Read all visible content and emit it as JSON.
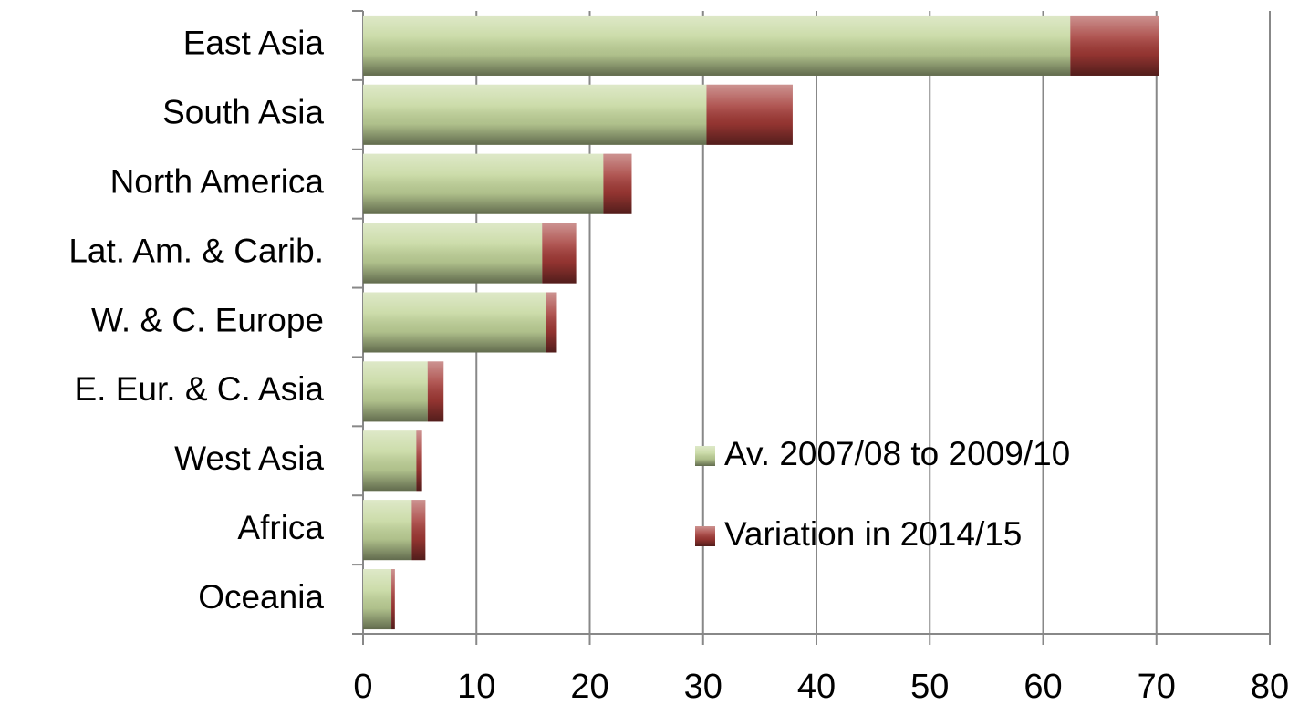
{
  "chart_data": {
    "type": "stacked_barh",
    "categories": [
      "East Asia",
      "South Asia",
      "North America",
      "Lat. Am. & Carib.",
      "W. & C. Europe",
      "E. Eur. & C. Asia",
      "West Asia",
      "Africa",
      "Oceania"
    ],
    "series": [
      {
        "name": "Av. 2007/08 to 2009/10",
        "color": "#c3d69b",
        "values": [
          62.4,
          30.3,
          21.2,
          15.8,
          16.1,
          5.7,
          4.7,
          4.3,
          2.5
        ]
      },
      {
        "name": "Variation in 2014/15",
        "color": "#a33a36",
        "values": [
          7.8,
          7.6,
          2.5,
          3.0,
          1.0,
          1.4,
          0.5,
          1.2,
          0.3
        ]
      }
    ],
    "xlim": [
      0,
      80
    ],
    "xticks": [
      0,
      10,
      20,
      30,
      40,
      50,
      60,
      70,
      80
    ],
    "grid": true
  }
}
